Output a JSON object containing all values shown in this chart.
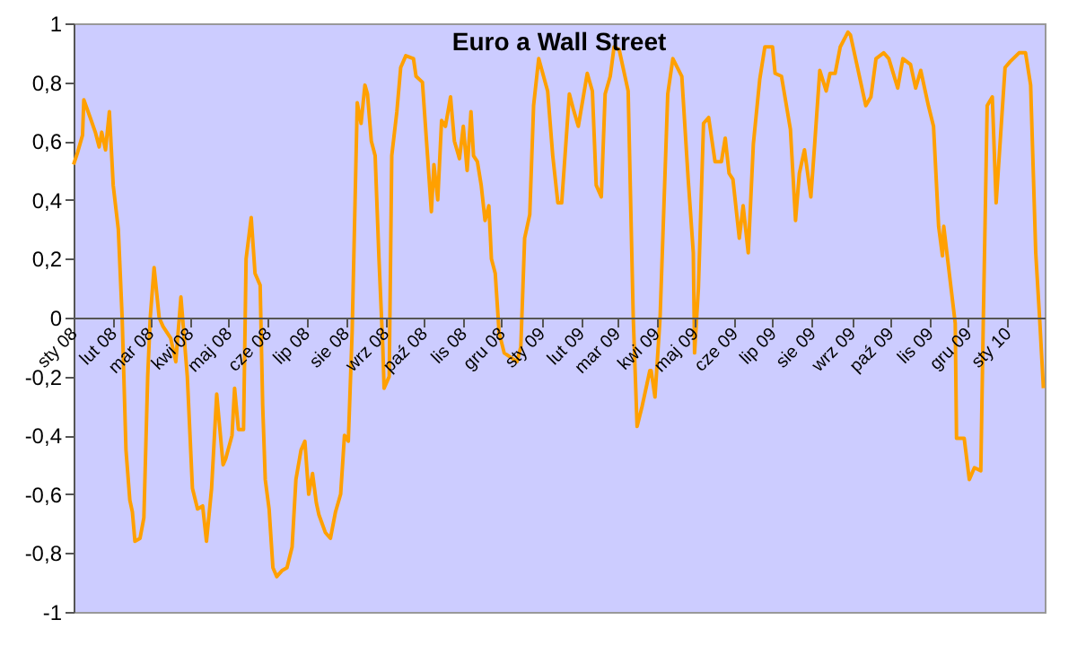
{
  "chart_data": {
    "type": "line",
    "title": "Euro a Wall Street",
    "x": [
      "2008-01-01",
      "2008-01-04",
      "2008-01-08",
      "2008-01-09",
      "2008-01-14",
      "2008-01-18",
      "2008-01-21",
      "2008-01-23",
      "2008-01-26",
      "2008-01-29",
      "2008-02-01",
      "2008-02-05",
      "2008-02-08",
      "2008-02-11",
      "2008-02-14",
      "2008-02-16",
      "2008-02-18",
      "2008-02-22",
      "2008-02-25",
      "2008-02-28",
      "2008-03-01",
      "2008-03-04",
      "2008-03-08",
      "2008-03-11",
      "2008-03-17",
      "2008-03-21",
      "2008-03-25",
      "2008-03-30",
      "2008-04-03",
      "2008-04-07",
      "2008-04-11",
      "2008-04-14",
      "2008-04-18",
      "2008-04-22",
      "2008-04-27",
      "2008-04-29",
      "2008-05-04",
      "2008-05-06",
      "2008-05-09",
      "2008-05-13",
      "2008-05-15",
      "2008-05-19",
      "2008-05-22",
      "2008-05-26",
      "2008-05-28",
      "2008-05-30",
      "2008-06-02",
      "2008-06-05",
      "2008-06-08",
      "2008-06-12",
      "2008-06-16",
      "2008-06-20",
      "2008-06-23",
      "2008-06-27",
      "2008-06-30",
      "2008-07-03",
      "2008-07-06",
      "2008-07-09",
      "2008-07-11",
      "2008-07-16",
      "2008-07-20",
      "2008-07-24",
      "2008-07-28",
      "2008-07-31",
      "2008-08-03",
      "2008-08-06",
      "2008-08-10",
      "2008-08-13",
      "2008-08-16",
      "2008-08-18",
      "2008-08-21",
      "2008-08-24",
      "2008-08-27",
      "2008-08-30",
      "2008-08-31",
      "2008-09-04",
      "2008-09-06",
      "2008-09-10",
      "2008-09-13",
      "2008-09-17",
      "2008-09-23",
      "2008-09-25",
      "2008-09-30",
      "2008-10-04",
      "2008-10-07",
      "2008-10-09",
      "2008-10-12",
      "2008-10-15",
      "2008-10-18",
      "2008-10-22",
      "2008-10-25",
      "2008-10-29",
      "2008-11-01",
      "2008-11-04",
      "2008-11-07",
      "2008-11-09",
      "2008-11-12",
      "2008-11-15",
      "2008-11-18",
      "2008-11-21",
      "2008-11-23",
      "2008-11-26",
      "2008-11-29",
      "2008-12-03",
      "2008-12-13",
      "2008-12-16",
      "2008-12-19",
      "2008-12-23",
      "2008-12-26",
      "2008-12-30",
      "2009-01-06",
      "2009-01-10",
      "2009-01-14",
      "2009-01-17",
      "2009-01-23",
      "2009-01-26",
      "2009-01-30",
      "2009-02-06",
      "2009-02-10",
      "2009-02-13",
      "2009-02-17",
      "2009-02-20",
      "2009-02-24",
      "2009-02-27",
      "2009-03-03",
      "2009-03-10",
      "2009-03-14",
      "2009-03-17",
      "2009-03-21",
      "2009-03-27",
      "2009-03-28",
      "2009-03-31",
      "2009-04-04",
      "2009-04-10",
      "2009-04-14",
      "2009-04-21",
      "2009-04-26",
      "2009-04-30",
      "2009-05-01",
      "2009-05-04",
      "2009-05-08",
      "2009-05-12",
      "2009-05-17",
      "2009-05-22",
      "2009-05-25",
      "2009-05-28",
      "2009-05-31",
      "2009-06-05",
      "2009-06-08",
      "2009-06-12",
      "2009-06-16",
      "2009-06-21",
      "2009-06-25",
      "2009-07-01",
      "2009-07-03",
      "2009-07-08",
      "2009-07-15",
      "2009-07-19",
      "2009-07-22",
      "2009-07-26",
      "2009-07-31",
      "2009-08-03",
      "2009-08-07",
      "2009-08-12",
      "2009-08-15",
      "2009-08-19",
      "2009-08-23",
      "2009-08-29",
      "2009-08-31",
      "2009-09-05",
      "2009-09-12",
      "2009-09-16",
      "2009-09-20",
      "2009-09-26",
      "2009-09-30",
      "2009-10-07",
      "2009-10-11",
      "2009-10-17",
      "2009-10-21",
      "2009-10-25",
      "2009-10-31",
      "2009-11-04",
      "2009-11-08",
      "2009-11-11",
      "2009-11-12",
      "2009-11-18",
      "2009-11-21",
      "2009-11-22",
      "2009-11-28",
      "2009-12-02",
      "2009-12-06",
      "2009-12-11",
      "2009-12-13",
      "2009-12-16",
      "2009-12-20",
      "2009-12-23",
      "2009-12-30",
      "2010-01-03",
      "2010-01-10",
      "2010-01-15",
      "2010-01-19",
      "2010-01-23",
      "2010-01-26",
      "2010-01-29"
    ],
    "series": [
      {
        "color": "#ffa000",
        "values": [
          0.52,
          0.56,
          0.62,
          0.74,
          0.68,
          0.63,
          0.58,
          0.63,
          0.57,
          0.7,
          0.45,
          0.3,
          0.0,
          -0.45,
          -0.62,
          -0.66,
          -0.76,
          -0.75,
          -0.68,
          -0.2,
          0.0,
          0.17,
          0.0,
          -0.03,
          -0.07,
          -0.15,
          0.07,
          -0.2,
          -0.58,
          -0.65,
          -0.64,
          -0.76,
          -0.58,
          -0.26,
          -0.5,
          -0.48,
          -0.4,
          -0.24,
          -0.38,
          -0.38,
          0.2,
          0.34,
          0.15,
          0.11,
          -0.3,
          -0.55,
          -0.65,
          -0.85,
          -0.88,
          -0.86,
          -0.85,
          -0.78,
          -0.55,
          -0.45,
          -0.42,
          -0.6,
          -0.53,
          -0.63,
          -0.67,
          -0.73,
          -0.75,
          -0.66,
          -0.6,
          -0.4,
          -0.42,
          -0.05,
          0.73,
          0.66,
          0.79,
          0.76,
          0.6,
          0.55,
          0.2,
          -0.1,
          -0.24,
          -0.2,
          0.55,
          0.7,
          0.85,
          0.89,
          0.88,
          0.82,
          0.8,
          0.55,
          0.36,
          0.52,
          0.4,
          0.67,
          0.65,
          0.75,
          0.6,
          0.54,
          0.65,
          0.5,
          0.7,
          0.55,
          0.53,
          0.45,
          0.33,
          0.38,
          0.2,
          0.15,
          -0.05,
          -0.12,
          -0.15,
          -0.1,
          0.27,
          0.35,
          0.72,
          0.88,
          0.77,
          0.55,
          0.39,
          0.39,
          0.76,
          0.71,
          0.65,
          0.83,
          0.77,
          0.45,
          0.41,
          0.76,
          0.82,
          0.92,
          0.91,
          0.77,
          0.0,
          -0.37,
          -0.3,
          -0.18,
          -0.18,
          -0.27,
          0.0,
          0.76,
          0.88,
          0.82,
          0.47,
          0.22,
          -0.12,
          0.1,
          0.66,
          0.68,
          0.53,
          0.53,
          0.61,
          0.49,
          0.47,
          0.27,
          0.38,
          0.22,
          0.59,
          0.81,
          0.92,
          0.92,
          0.83,
          0.82,
          0.64,
          0.33,
          0.49,
          0.57,
          0.41,
          0.59,
          0.84,
          0.77,
          0.83,
          0.83,
          0.92,
          0.97,
          0.96,
          0.86,
          0.72,
          0.75,
          0.88,
          0.9,
          0.88,
          0.78,
          0.88,
          0.86,
          0.78,
          0.84,
          0.72,
          0.65,
          0.31,
          0.21,
          0.31,
          0.09,
          -0.02,
          -0.41,
          -0.41,
          -0.55,
          -0.51,
          -0.52,
          0.0,
          0.72,
          0.75,
          0.39,
          0.85,
          0.87,
          0.9,
          0.9,
          0.79,
          0.22,
          0.0,
          -0.24
        ]
      }
    ],
    "xlim": [
      "2008-01-01",
      "2010-01-30"
    ],
    "xticks": [
      {
        "value": "2008-01-01",
        "label": "sty 08"
      },
      {
        "value": "2008-02-01",
        "label": "lut 08"
      },
      {
        "value": "2008-03-01",
        "label": "mar 08"
      },
      {
        "value": "2008-04-01",
        "label": "kwi 08"
      },
      {
        "value": "2008-05-01",
        "label": "maj 08"
      },
      {
        "value": "2008-06-01",
        "label": "cze 08"
      },
      {
        "value": "2008-07-01",
        "label": "lip 08"
      },
      {
        "value": "2008-08-01",
        "label": "sie 08"
      },
      {
        "value": "2008-09-01",
        "label": "wrz 08"
      },
      {
        "value": "2008-10-01",
        "label": "paź 08"
      },
      {
        "value": "2008-11-01",
        "label": "lis 08"
      },
      {
        "value": "2008-12-01",
        "label": "gru 08"
      },
      {
        "value": "2009-01-01",
        "label": "sty 09"
      },
      {
        "value": "2009-02-01",
        "label": "lut 09"
      },
      {
        "value": "2009-03-01",
        "label": "mar 09"
      },
      {
        "value": "2009-04-01",
        "label": "kwi 09"
      },
      {
        "value": "2009-05-01",
        "label": "maj 09"
      },
      {
        "value": "2009-06-01",
        "label": "cze 09"
      },
      {
        "value": "2009-07-01",
        "label": "lip 09"
      },
      {
        "value": "2009-08-01",
        "label": "sie 09"
      },
      {
        "value": "2009-09-01",
        "label": "wrz 09"
      },
      {
        "value": "2009-10-01",
        "label": "paź 09"
      },
      {
        "value": "2009-11-01",
        "label": "lis 09"
      },
      {
        "value": "2009-12-01",
        "label": "gru 09"
      },
      {
        "value": "2010-01-01",
        "label": "sty 10"
      }
    ],
    "ylim": [
      -1,
      1
    ],
    "yticks": [
      {
        "value": -1,
        "label": "-1"
      },
      {
        "value": -0.8,
        "label": "-0,8"
      },
      {
        "value": -0.6,
        "label": "-0,6"
      },
      {
        "value": -0.4,
        "label": "-0,4"
      },
      {
        "value": -0.2,
        "label": "-0,2"
      },
      {
        "value": 0,
        "label": "0"
      },
      {
        "value": 0.2,
        "label": "0,2"
      },
      {
        "value": 0.4,
        "label": "0,4"
      },
      {
        "value": 0.6,
        "label": "0,6"
      },
      {
        "value": 0.8,
        "label": "0,8"
      },
      {
        "value": 1,
        "label": "1"
      }
    ],
    "grid": false,
    "legend": false,
    "marker": "none",
    "line_style": "solid"
  }
}
